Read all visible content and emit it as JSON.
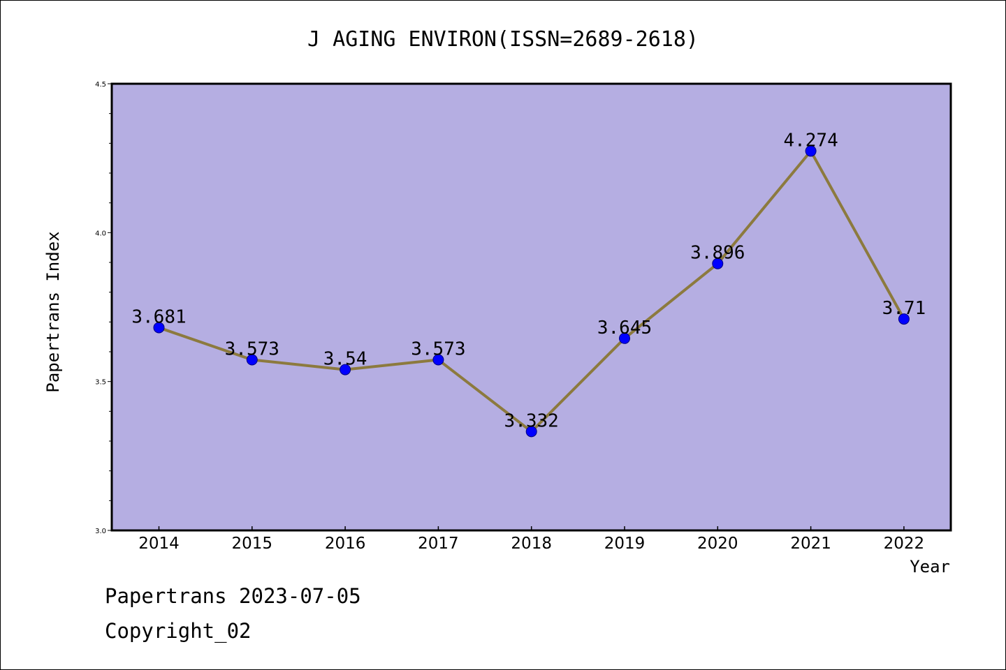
{
  "chart_data": {
    "type": "line",
    "title": "J AGING ENVIRON(ISSN=2689-2618)",
    "xlabel": "Year",
    "ylabel": "Papertrans Index",
    "categories": [
      "2014",
      "2015",
      "2016",
      "2017",
      "2018",
      "2019",
      "2020",
      "2021",
      "2022"
    ],
    "series": [
      {
        "values": [
          3.681,
          3.573,
          3.54,
          3.573,
          3.332,
          3.645,
          3.896,
          4.274,
          3.71
        ],
        "labels": [
          "3.681",
          "3.573",
          "3.54",
          "3.573",
          "3.332",
          "3.645",
          "3.896",
          "4.274",
          "3.71"
        ]
      }
    ],
    "ylim": [
      3.0,
      4.5
    ],
    "yticks": [
      "3.0",
      "3.5",
      "4.0",
      "4.5"
    ],
    "minor_ticks_per_major": 5,
    "grid": false,
    "legend": "none",
    "colors": {
      "plot_background": "#b5aee2",
      "line": "#8c7a3e",
      "marker_fill": "#0000ff",
      "marker_edge": "#000080",
      "frame": "#000000"
    }
  },
  "footer": {
    "line1": "Papertrans 2023-07-05",
    "line2": "Copyright_02"
  }
}
